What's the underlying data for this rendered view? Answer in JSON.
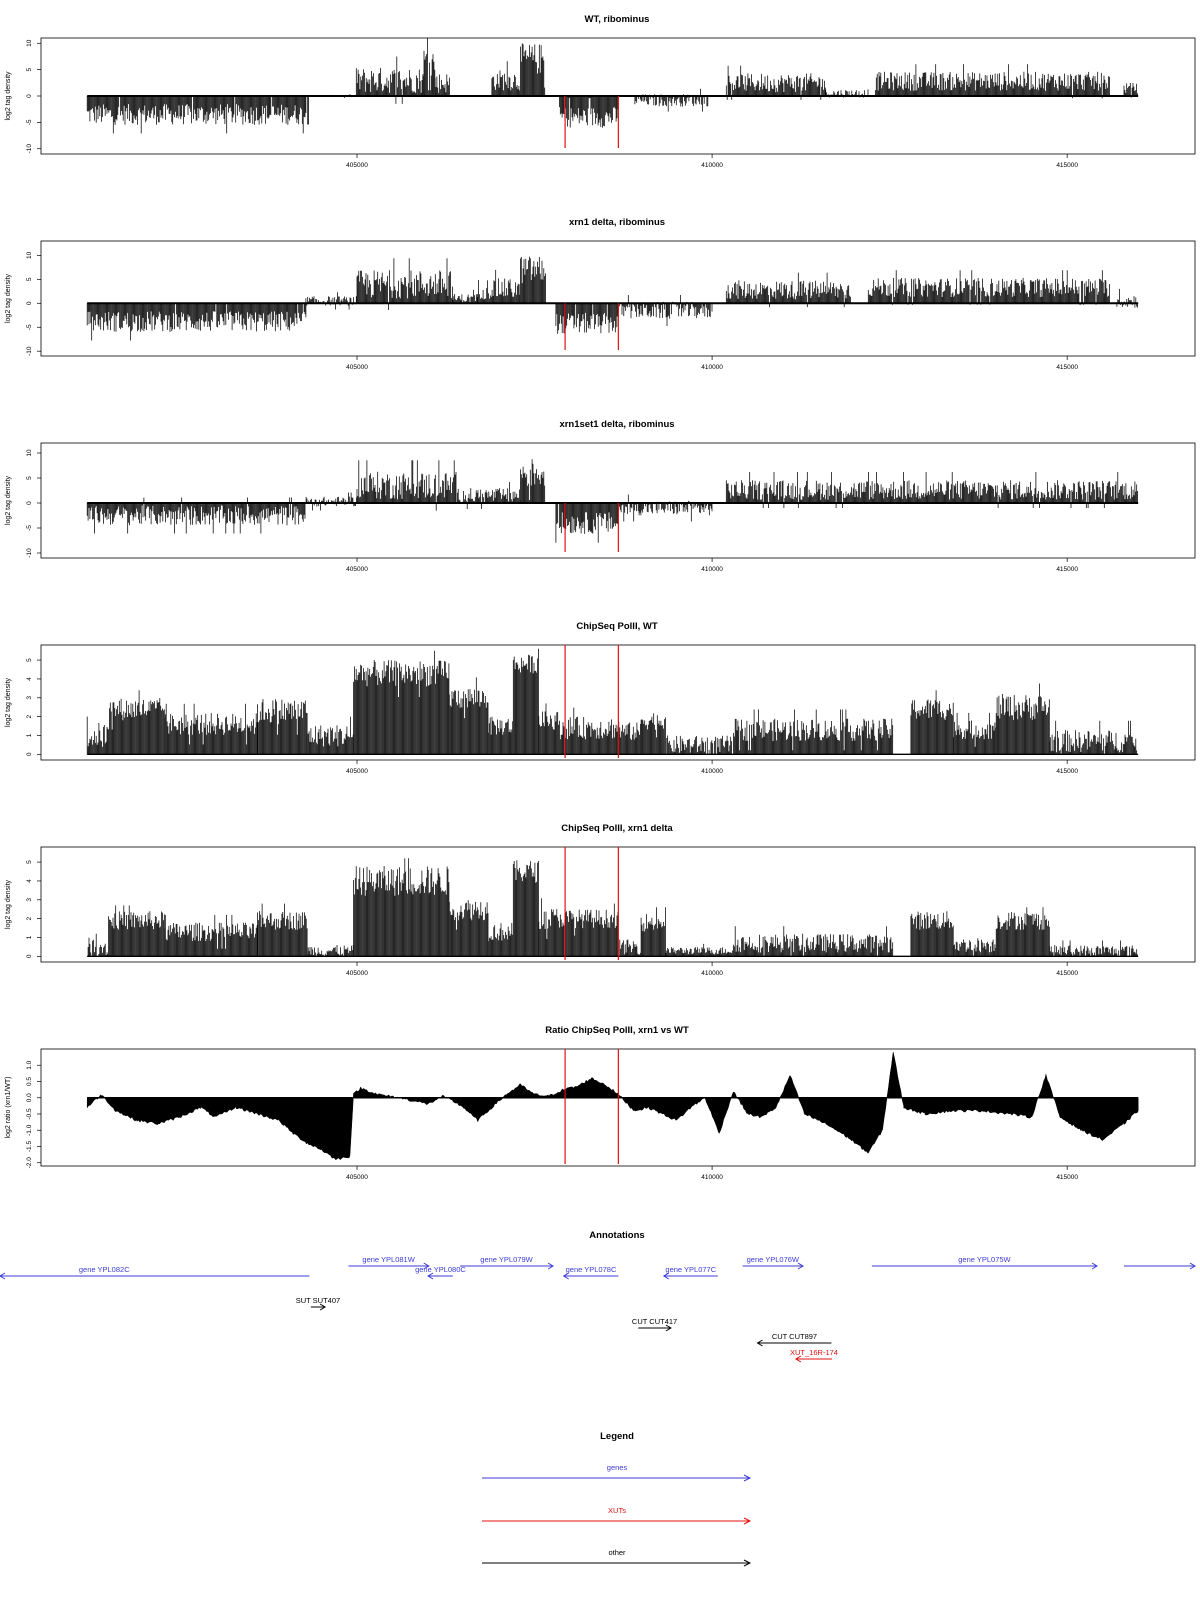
{
  "colors": {
    "gene": "#3b3bd6",
    "xut": "#e01010",
    "other": "#000000",
    "marker": "#e01010"
  },
  "x_ticks": [
    "405000",
    "410000",
    "415000"
  ],
  "chart_data": [
    {
      "type": "bar",
      "title": "WT, ribominus",
      "ylabel": "log2 tag density",
      "ylim": [
        -11,
        11
      ],
      "y_ticks": [
        "10",
        "5",
        "0",
        "-5",
        "-10"
      ],
      "xlim": [
        400550,
        416800
      ],
      "markers": [
        407930,
        408680
      ],
      "segments": [
        {
          "from": 401200,
          "to": 404330,
          "mean": -3.5,
          "spread": 2.0,
          "max": 8
        },
        {
          "from": 404330,
          "to": 404990,
          "mean": 0,
          "spread": 0.2,
          "max": 1
        },
        {
          "from": 404990,
          "to": 405930,
          "mean": 3.0,
          "spread": 2.5,
          "max": 9
        },
        {
          "from": 405930,
          "to": 406100,
          "mean": 6.5,
          "spread": 3.0,
          "max": 11
        },
        {
          "from": 406100,
          "to": 406310,
          "mean": 2.5,
          "spread": 2.0,
          "max": 6
        },
        {
          "from": 406900,
          "to": 407300,
          "mean": 3.0,
          "spread": 2.0,
          "max": 7
        },
        {
          "from": 407300,
          "to": 407650,
          "mean": 7.0,
          "spread": 3.0,
          "max": 11
        },
        {
          "from": 407850,
          "to": 408680,
          "mean": -4.0,
          "spread": 2.0,
          "max": 8
        },
        {
          "from": 408900,
          "to": 409950,
          "mean": -0.8,
          "spread": 1.2,
          "max": 4
        },
        {
          "from": 410200,
          "to": 411600,
          "mean": 2.5,
          "spread": 1.8,
          "max": 6
        },
        {
          "from": 411600,
          "to": 412200,
          "mean": 0.5,
          "spread": 0.8,
          "max": 3
        },
        {
          "from": 412300,
          "to": 415600,
          "mean": 2.8,
          "spread": 1.8,
          "max": 7
        },
        {
          "from": 415800,
          "to": 416000,
          "mean": 1.5,
          "spread": 1.0,
          "max": 4
        }
      ]
    },
    {
      "type": "bar",
      "title": "xrn1 delta, ribominus",
      "ylabel": "log2 tag density",
      "ylim": [
        -11,
        13
      ],
      "y_ticks": [
        "10",
        "5",
        "0",
        "-5",
        "-10"
      ],
      "xlim": [
        400550,
        416800
      ],
      "markers": [
        407930,
        408680
      ],
      "segments": [
        {
          "from": 401200,
          "to": 404280,
          "mean": -3.8,
          "spread": 2.2,
          "max": 9
        },
        {
          "from": 404280,
          "to": 405000,
          "mean": 0.5,
          "spread": 1.0,
          "max": 3
        },
        {
          "from": 405000,
          "to": 406350,
          "mean": 4.0,
          "spread": 3.0,
          "max": 12
        },
        {
          "from": 406350,
          "to": 406700,
          "mean": 1.0,
          "spread": 1.0,
          "max": 3
        },
        {
          "from": 406700,
          "to": 407300,
          "mean": 3.0,
          "spread": 2.2,
          "max": 8
        },
        {
          "from": 407300,
          "to": 407660,
          "mean": 7.0,
          "spread": 3.0,
          "max": 12
        },
        {
          "from": 407800,
          "to": 408680,
          "mean": -4.2,
          "spread": 2.2,
          "max": 9
        },
        {
          "from": 408680,
          "to": 410000,
          "mean": -1.5,
          "spread": 1.8,
          "max": 5
        },
        {
          "from": 410200,
          "to": 411950,
          "mean": 2.8,
          "spread": 2.0,
          "max": 7
        },
        {
          "from": 412200,
          "to": 415600,
          "mean": 3.3,
          "spread": 2.0,
          "max": 8
        },
        {
          "from": 415700,
          "to": 416000,
          "mean": 0.5,
          "spread": 1.5,
          "max": 3
        }
      ]
    },
    {
      "type": "bar",
      "title": "xrn1set1 delta, ribominus",
      "ylabel": "log2 tag density",
      "ylim": [
        -11,
        12
      ],
      "y_ticks": [
        "10",
        "5",
        "0",
        "-5",
        "-10"
      ],
      "xlim": [
        400550,
        416800
      ],
      "markers": [
        407930,
        408680
      ],
      "segments": [
        {
          "from": 401200,
          "to": 404270,
          "mean": -2.5,
          "spread": 2.0,
          "max": 7
        },
        {
          "from": 404270,
          "to": 405000,
          "mean": 0.3,
          "spread": 1.0,
          "max": 3
        },
        {
          "from": 405000,
          "to": 406400,
          "mean": 3.5,
          "spread": 2.8,
          "max": 11
        },
        {
          "from": 406400,
          "to": 407300,
          "mean": 1.5,
          "spread": 1.5,
          "max": 5
        },
        {
          "from": 407300,
          "to": 407650,
          "mean": 6.0,
          "spread": 3.0,
          "max": 10
        },
        {
          "from": 407800,
          "to": 408680,
          "mean": -4.0,
          "spread": 2.2,
          "max": 9
        },
        {
          "from": 408680,
          "to": 410000,
          "mean": -1.0,
          "spread": 1.5,
          "max": 4
        },
        {
          "from": 410200,
          "to": 416000,
          "mean": 2.6,
          "spread": 2.0,
          "max": 8
        }
      ]
    },
    {
      "type": "bar",
      "title": "ChipSeq PolII, WT",
      "ylabel": "log2 tag density",
      "ylim": [
        -0.3,
        5.8
      ],
      "y_ticks": [
        "5",
        "4",
        "3",
        "2",
        "1",
        "0"
      ],
      "xlim": [
        400550,
        416800
      ],
      "markers": [
        407930,
        408680
      ],
      "positive_only": true,
      "segments": [
        {
          "from": 401200,
          "to": 401500,
          "mean": 1.0,
          "spread": 0.7,
          "max": 2
        },
        {
          "from": 401500,
          "to": 402300,
          "mean": 2.4,
          "spread": 0.6,
          "max": 3.4
        },
        {
          "from": 402300,
          "to": 403600,
          "mean": 1.6,
          "spread": 0.6,
          "max": 2.8
        },
        {
          "from": 403600,
          "to": 404300,
          "mean": 2.3,
          "spread": 0.7,
          "max": 3.5
        },
        {
          "from": 404300,
          "to": 404950,
          "mean": 1.0,
          "spread": 0.6,
          "max": 2
        },
        {
          "from": 404950,
          "to": 406300,
          "mean": 4.3,
          "spread": 0.7,
          "max": 5.5
        },
        {
          "from": 406300,
          "to": 406850,
          "mean": 3.0,
          "spread": 0.6,
          "max": 4.2
        },
        {
          "from": 406850,
          "to": 407200,
          "mean": 1.5,
          "spread": 0.5,
          "max": 2.5
        },
        {
          "from": 407200,
          "to": 407560,
          "mean": 4.8,
          "spread": 0.5,
          "max": 5.6
        },
        {
          "from": 407560,
          "to": 407850,
          "mean": 1.8,
          "spread": 0.5,
          "max": 3
        },
        {
          "from": 407850,
          "to": 408700,
          "mean": 1.4,
          "spread": 0.6,
          "max": 3
        },
        {
          "from": 408700,
          "to": 409000,
          "mean": 1.2,
          "spread": 0.5,
          "max": 2.2
        },
        {
          "from": 409000,
          "to": 409350,
          "mean": 1.8,
          "spread": 0.5,
          "max": 2.7
        },
        {
          "from": 409350,
          "to": 410300,
          "mean": 0.5,
          "spread": 0.5,
          "max": 1.5
        },
        {
          "from": 410300,
          "to": 412550,
          "mean": 1.3,
          "spread": 0.6,
          "max": 2.5
        },
        {
          "from": 412800,
          "to": 413400,
          "mean": 2.4,
          "spread": 0.6,
          "max": 3.4
        },
        {
          "from": 413400,
          "to": 414000,
          "mean": 1.3,
          "spread": 0.5,
          "max": 2.2
        },
        {
          "from": 414000,
          "to": 414750,
          "mean": 2.5,
          "spread": 0.7,
          "max": 4
        },
        {
          "from": 414750,
          "to": 416000,
          "mean": 0.7,
          "spread": 0.6,
          "max": 2
        }
      ]
    },
    {
      "type": "bar",
      "title": "ChipSeq PolII, xrn1 delta",
      "ylabel": "log2 tag density",
      "ylim": [
        -0.3,
        5.8
      ],
      "y_ticks": [
        "5",
        "4",
        "3",
        "2",
        "1",
        "0"
      ],
      "xlim": [
        400550,
        416800
      ],
      "markers": [
        407930,
        408680
      ],
      "positive_only": true,
      "segments": [
        {
          "from": 401200,
          "to": 401500,
          "mean": 0.5,
          "spread": 0.5,
          "max": 1.2
        },
        {
          "from": 401500,
          "to": 402300,
          "mean": 1.9,
          "spread": 0.5,
          "max": 2.7
        },
        {
          "from": 402300,
          "to": 403600,
          "mean": 1.3,
          "spread": 0.5,
          "max": 2.3
        },
        {
          "from": 403600,
          "to": 404300,
          "mean": 1.9,
          "spread": 0.5,
          "max": 2.8
        },
        {
          "from": 404300,
          "to": 404950,
          "mean": 0.3,
          "spread": 0.3,
          "max": 1
        },
        {
          "from": 404950,
          "to": 406300,
          "mean": 4.0,
          "spread": 0.8,
          "max": 5.2
        },
        {
          "from": 406300,
          "to": 406850,
          "mean": 2.5,
          "spread": 0.6,
          "max": 3.8
        },
        {
          "from": 406850,
          "to": 407200,
          "mean": 1.3,
          "spread": 0.5,
          "max": 2.3
        },
        {
          "from": 407200,
          "to": 407560,
          "mean": 4.5,
          "spread": 0.6,
          "max": 5.6
        },
        {
          "from": 407560,
          "to": 407850,
          "mean": 2.0,
          "spread": 0.6,
          "max": 3.2
        },
        {
          "from": 407850,
          "to": 408680,
          "mean": 2.0,
          "spread": 0.5,
          "max": 2.8
        },
        {
          "from": 408700,
          "to": 409000,
          "mean": 0.5,
          "spread": 0.4,
          "max": 1.3
        },
        {
          "from": 409000,
          "to": 409350,
          "mean": 1.8,
          "spread": 0.5,
          "max": 2.6
        },
        {
          "from": 409350,
          "to": 410300,
          "mean": 0.3,
          "spread": 0.2,
          "max": 0.8
        },
        {
          "from": 410300,
          "to": 412550,
          "mean": 0.7,
          "spread": 0.5,
          "max": 1.8
        },
        {
          "from": 412800,
          "to": 413400,
          "mean": 1.9,
          "spread": 0.5,
          "max": 2.6
        },
        {
          "from": 413400,
          "to": 414000,
          "mean": 0.6,
          "spread": 0.4,
          "max": 1.4
        },
        {
          "from": 414000,
          "to": 414750,
          "mean": 1.9,
          "spread": 0.5,
          "max": 2.6
        },
        {
          "from": 414750,
          "to": 416000,
          "mean": 0.3,
          "spread": 0.3,
          "max": 1.3
        }
      ]
    },
    {
      "type": "area",
      "title": "Ratio ChipSeq PolII, xrn1 vs WT",
      "ylabel": "log2 ratio (xrn1/WT)",
      "ylim": [
        -2.1,
        1.5
      ],
      "y_ticks": [
        "1.0",
        "0.5",
        "0.0",
        "-0.5",
        "-1.0",
        "-1.5",
        "-2.0"
      ],
      "xlim": [
        400550,
        416800
      ],
      "markers": [
        407930,
        408680
      ],
      "points": [
        [
          401200,
          -0.3
        ],
        [
          401400,
          0.1
        ],
        [
          401600,
          -0.4
        ],
        [
          401900,
          -0.7
        ],
        [
          402200,
          -0.8
        ],
        [
          402500,
          -0.6
        ],
        [
          402800,
          -0.3
        ],
        [
          403000,
          -0.6
        ],
        [
          403300,
          -0.3
        ],
        [
          403600,
          -0.5
        ],
        [
          403900,
          -0.7
        ],
        [
          404100,
          -1.1
        ],
        [
          404300,
          -1.4
        ],
        [
          404500,
          -1.6
        ],
        [
          404700,
          -1.9
        ],
        [
          404900,
          -1.8
        ],
        [
          404950,
          0.1
        ],
        [
          405050,
          0.3
        ],
        [
          405300,
          0.1
        ],
        [
          405600,
          0.0
        ],
        [
          406000,
          -0.2
        ],
        [
          406200,
          0.05
        ],
        [
          406350,
          -0.1
        ],
        [
          406500,
          -0.3
        ],
        [
          406700,
          -0.7
        ],
        [
          406900,
          -0.3
        ],
        [
          407100,
          0.1
        ],
        [
          407300,
          0.4
        ],
        [
          407500,
          0.1
        ],
        [
          407700,
          0.05
        ],
        [
          407900,
          0.25
        ],
        [
          408100,
          0.35
        ],
        [
          408300,
          0.6
        ],
        [
          408500,
          0.4
        ],
        [
          408680,
          0.1
        ],
        [
          408900,
          -0.4
        ],
        [
          409100,
          -0.3
        ],
        [
          409300,
          -0.5
        ],
        [
          409500,
          -0.7
        ],
        [
          409700,
          -0.3
        ],
        [
          409900,
          0.0
        ],
        [
          410100,
          -1.1
        ],
        [
          410300,
          0.2
        ],
        [
          410500,
          -0.5
        ],
        [
          410700,
          -0.6
        ],
        [
          410900,
          -0.3
        ],
        [
          411100,
          0.7
        ],
        [
          411300,
          -0.5
        ],
        [
          411600,
          -0.8
        ],
        [
          411900,
          -1.2
        ],
        [
          412200,
          -1.7
        ],
        [
          412400,
          -1.0
        ],
        [
          412550,
          1.4
        ],
        [
          412700,
          -0.3
        ],
        [
          413000,
          -0.5
        ],
        [
          413400,
          -0.4
        ],
        [
          413800,
          -0.4
        ],
        [
          414200,
          -0.5
        ],
        [
          414500,
          -0.6
        ],
        [
          414700,
          0.7
        ],
        [
          414900,
          -0.6
        ],
        [
          415200,
          -1.0
        ],
        [
          415500,
          -1.3
        ],
        [
          415800,
          -0.8
        ],
        [
          416000,
          -0.4
        ]
      ]
    }
  ],
  "annotations": {
    "title": "Annotations",
    "features": [
      {
        "label": "gene YPL082C",
        "type": "gene",
        "from": 399100,
        "to": 404330,
        "strand": "-",
        "row": 1
      },
      {
        "label": "gene YPL081W",
        "type": "gene",
        "from": 404880,
        "to": 406010,
        "strand": "+",
        "row": 0
      },
      {
        "label": "gene YPL080C",
        "type": "gene",
        "from": 406000,
        "to": 406350,
        "strand": "-",
        "row": 1
      },
      {
        "label": "gene YPL079W",
        "type": "gene",
        "from": 406450,
        "to": 407760,
        "strand": "+",
        "row": 0
      },
      {
        "label": "gene YPL078C",
        "type": "gene",
        "from": 407910,
        "to": 408680,
        "strand": "-",
        "row": 1
      },
      {
        "label": "gene YPL077C",
        "type": "gene",
        "from": 409320,
        "to": 410080,
        "strand": "-",
        "row": 1
      },
      {
        "label": "gene YPL076W",
        "type": "gene",
        "from": 410430,
        "to": 411280,
        "strand": "+",
        "row": 0
      },
      {
        "label": "gene YPL075W",
        "type": "gene",
        "from": 412250,
        "to": 415420,
        "strand": "+",
        "row": 0
      },
      {
        "label": "",
        "type": "gene",
        "from": 415800,
        "to": 416800,
        "strand": "+",
        "row": 0
      },
      {
        "label": "SUT SUT407",
        "type": "other",
        "from": 404350,
        "to": 404550,
        "strand": "+",
        "row": 2
      },
      {
        "label": "CUT CUT417",
        "type": "other",
        "from": 408960,
        "to": 409420,
        "strand": "+",
        "row": 3
      },
      {
        "label": "CUT CUT897",
        "type": "other",
        "from": 410640,
        "to": 411680,
        "strand": "-",
        "row": 4
      },
      {
        "label": "XUT_16R-174",
        "type": "xut",
        "from": 411180,
        "to": 411690,
        "strand": "-",
        "row": 5
      }
    ]
  },
  "legend": {
    "title": "Legend",
    "items": [
      {
        "label": "genes",
        "type": "gene"
      },
      {
        "label": "XUTs",
        "type": "xut"
      },
      {
        "label": "other",
        "type": "other"
      }
    ]
  }
}
